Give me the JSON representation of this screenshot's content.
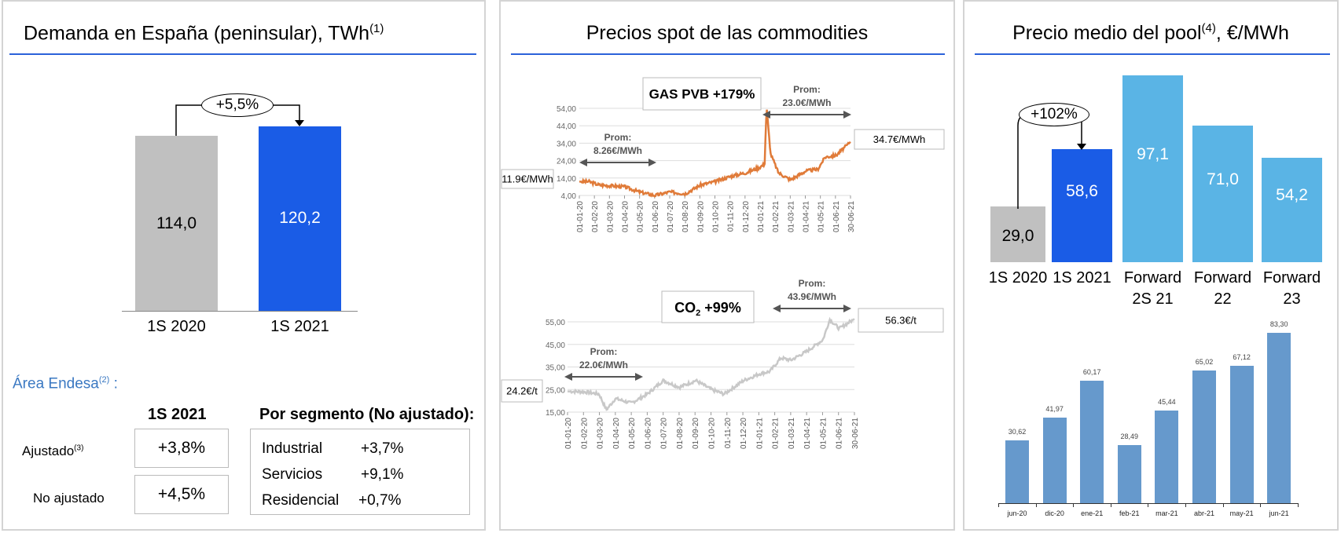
{
  "left": {
    "title": "Demanda en España (peninsular), TWh",
    "title_sup": "(1)",
    "bars": [
      {
        "label": "1S 2020",
        "value": 114.0,
        "text": "114,0",
        "color": "#c0c0c0"
      },
      {
        "label": "1S 2021",
        "value": 120.2,
        "text": "120,2",
        "color": "#1a5ce6"
      }
    ],
    "change": "+5,5%",
    "area_label": "Área Endesa",
    "area_sup": "(2)",
    "area_colon": " :",
    "col_header": "1S 2021",
    "rows": [
      {
        "label": "Ajustado",
        "sup": "(3)",
        "value": "+3,8%"
      },
      {
        "label": "No ajustado",
        "sup": "",
        "value": "+4,5%"
      }
    ],
    "segment_header": "Por segmento (No ajustado):",
    "segments": [
      {
        "label": "Industrial",
        "value": "+3,7%"
      },
      {
        "label": "Servicios",
        "value": "+9,1%"
      },
      {
        "label": "Residencial",
        "value": "+0,7%"
      }
    ]
  },
  "middle": {
    "title": "Precios spot de las commodities"
  },
  "right": {
    "title": "Precio medio del pool",
    "title_sup": "(4)",
    "title_unit": ", €/MWh",
    "change": "+102%"
  },
  "chart_data": [
    {
      "type": "bar",
      "title": "Demanda en España (peninsular), TWh",
      "categories": [
        "1S 2020",
        "1S 2021"
      ],
      "values": [
        114.0,
        120.2
      ]
    },
    {
      "type": "line",
      "title": "GAS PVB +179%",
      "color": "#e07b39",
      "yticks": [
        "4,00",
        "14,00",
        "24,00",
        "34,00",
        "44,00",
        "54,00"
      ],
      "ylim": [
        4,
        54
      ],
      "xticks": [
        "01-01-20",
        "01-02-20",
        "01-03-20",
        "01-04-20",
        "01-05-20",
        "01-06-20",
        "01-07-20",
        "01-08-20",
        "01-09-20",
        "01-10-20",
        "01-11-20",
        "01-12-20",
        "01-01-21",
        "01-02-21",
        "01-03-21",
        "01-04-21",
        "01-05-21",
        "01-06-21",
        "30-06-21"
      ],
      "series": [
        {
          "x": [
            "2020-01-01",
            "2020-01-20",
            "2020-02-10",
            "2020-04-01",
            "2020-05-01",
            "2020-06-01",
            "2020-07-01",
            "2020-08-01",
            "2020-09-01",
            "2020-10-01",
            "2020-11-01",
            "2020-12-01",
            "2020-12-28",
            "2021-01-08",
            "2021-01-12",
            "2021-01-20",
            "2021-02-05",
            "2021-03-01",
            "2021-04-01",
            "2021-04-25",
            "2021-05-10",
            "2021-06-01",
            "2021-06-30"
          ],
          "y": [
            11.9,
            12,
            10,
            9,
            6,
            4,
            6,
            5,
            10,
            12,
            15,
            17,
            20,
            22,
            55,
            28,
            17,
            13,
            18,
            19,
            26,
            27,
            34.7
          ]
        }
      ],
      "annotations": {
        "start": "11.9€/MWh",
        "end": "34.7€/MWh",
        "avg1_label": "Prom:",
        "avg1": "8.26€/MWh",
        "avg2_label": "Prom:",
        "avg2": "23.0€/MWh",
        "headline": "GAS PVB +179%"
      }
    },
    {
      "type": "line",
      "title": "CO2 +99%",
      "color": "#c8c8c8",
      "yticks": [
        "15,00",
        "25,00",
        "35,00",
        "45,00",
        "55,00"
      ],
      "ylim": [
        15,
        58.5
      ],
      "xticks": [
        "01-01-20",
        "01-02-20",
        "01-03-20",
        "01-04-20",
        "01-05-20",
        "01-06-20",
        "01-07-20",
        "01-08-20",
        "01-09-20",
        "01-10-20",
        "01-11-20",
        "01-12-20",
        "01-01-21",
        "01-02-21",
        "01-03-21",
        "01-04-21",
        "01-05-21",
        "01-06-21",
        "30-06-21"
      ],
      "series": [
        {
          "x": [
            "2020-01-01",
            "2020-02-01",
            "2020-03-01",
            "2020-03-15",
            "2020-04-01",
            "2020-05-01",
            "2020-06-01",
            "2020-07-01",
            "2020-08-01",
            "2020-09-01",
            "2020-10-01",
            "2020-10-25",
            "2020-12-01",
            "2021-01-01",
            "2021-01-20",
            "2021-02-10",
            "2021-03-01",
            "2021-04-01",
            "2021-05-01",
            "2021-05-14",
            "2021-06-01",
            "2021-06-30"
          ],
          "y": [
            24.2,
            24,
            23,
            16,
            21,
            19,
            23,
            29,
            26,
            29,
            25,
            23,
            29,
            32,
            33,
            39,
            38,
            42,
            47,
            56,
            52,
            56.3
          ]
        }
      ],
      "annotations": {
        "start": "24.2€/t",
        "end": "56.3€/t",
        "avg1_label": "Prom:",
        "avg1": "22.0€/MWh",
        "avg2_label": "Prom:",
        "avg2": "43.9€/MWh",
        "headline": "CO",
        "headline_sub": "2",
        "headline_rest": " +99%"
      }
    },
    {
      "type": "bar",
      "title": "Precio medio del pool, €/MWh",
      "categories": [
        "1S 2020",
        "1S 2021",
        "Forward 2S 21",
        "Forward 22",
        "Forward 23"
      ],
      "cat_lines": [
        [
          "1S 2020",
          ""
        ],
        [
          "1S 2021",
          ""
        ],
        [
          "Forward",
          "2S 21"
        ],
        [
          "Forward",
          "22"
        ],
        [
          "Forward",
          "23"
        ]
      ],
      "values": [
        29.0,
        58.6,
        97.1,
        71.0,
        54.2
      ],
      "labels": [
        "29,0",
        "58,6",
        "97,1",
        "71,0",
        "54,2"
      ],
      "colors": [
        "#c0c0c0",
        "#1a5ce6",
        "#5ab4e5",
        "#5ab4e5",
        "#5ab4e5"
      ]
    },
    {
      "type": "bar",
      "categories": [
        "jun-20",
        "dic-20",
        "ene-21",
        "feb-21",
        "mar-21",
        "abr-21",
        "may-21",
        "jun-21"
      ],
      "values": [
        30.62,
        41.97,
        60.17,
        28.49,
        45.44,
        65.02,
        67.12,
        83.3
      ],
      "labels": [
        "30,62",
        "41,97",
        "60,17",
        "28,49",
        "45,44",
        "65,02",
        "67,12",
        "83,30"
      ],
      "color": "#6699cc"
    }
  ]
}
